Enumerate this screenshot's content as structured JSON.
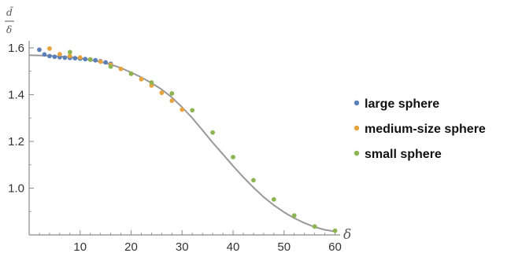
{
  "chart_data": {
    "type": "scatter",
    "x_axis": {
      "label": "δ",
      "range": [
        0,
        61
      ],
      "ticks": [
        10,
        20,
        30,
        40,
        50,
        60
      ],
      "tick_labels": [
        "10",
        "20",
        "30",
        "40",
        "50",
        "60"
      ]
    },
    "y_axis": {
      "label_numerator": "d̄",
      "label_denominator": "δ",
      "range": [
        0.8,
        1.63
      ],
      "ticks": [
        1.0,
        1.2,
        1.4,
        1.6
      ],
      "tick_labels": [
        "1.0",
        "1.2",
        "1.4",
        "1.6"
      ]
    },
    "grid": false,
    "legend_position": "right",
    "series": [
      {
        "name": "large sphere",
        "color": "#5b7fb8",
        "points": [
          [
            2,
            1.592
          ],
          [
            3,
            1.572
          ],
          [
            4,
            1.565
          ],
          [
            5,
            1.562
          ],
          [
            6,
            1.56
          ],
          [
            7,
            1.558
          ],
          [
            8,
            1.557
          ],
          [
            9,
            1.556
          ],
          [
            10,
            1.554
          ],
          [
            11,
            1.552
          ],
          [
            12,
            1.55
          ],
          [
            13,
            1.547
          ],
          [
            14,
            1.543
          ],
          [
            15,
            1.538
          ],
          [
            16,
            1.532
          ]
        ]
      },
      {
        "name": "medium-size sphere",
        "color": "#e8a33c",
        "points": [
          [
            4,
            1.597
          ],
          [
            6,
            1.573
          ],
          [
            8,
            1.565
          ],
          [
            10,
            1.559
          ],
          [
            12,
            1.551
          ],
          [
            14,
            1.541
          ],
          [
            16,
            1.528
          ],
          [
            18,
            1.51
          ],
          [
            20,
            1.489
          ],
          [
            22,
            1.466
          ],
          [
            24,
            1.439
          ],
          [
            26,
            1.408
          ],
          [
            28,
            1.374
          ],
          [
            30,
            1.336
          ]
        ]
      },
      {
        "name": "small sphere",
        "color": "#8cb450",
        "points": [
          [
            8,
            1.582
          ],
          [
            12,
            1.55
          ],
          [
            16,
            1.52
          ],
          [
            20,
            1.49
          ],
          [
            24,
            1.452
          ],
          [
            28,
            1.405
          ],
          [
            32,
            1.333
          ],
          [
            36,
            1.238
          ],
          [
            40,
            1.133
          ],
          [
            44,
            1.034
          ],
          [
            48,
            0.952
          ],
          [
            52,
            0.883
          ],
          [
            56,
            0.836
          ],
          [
            60,
            0.818
          ]
        ]
      }
    ],
    "curve": {
      "color": "#999999",
      "points": [
        [
          0,
          1.569
        ],
        [
          4,
          1.566
        ],
        [
          8,
          1.56
        ],
        [
          10,
          1.555
        ],
        [
          12,
          1.549
        ],
        [
          14,
          1.54
        ],
        [
          16,
          1.529
        ],
        [
          18,
          1.514
        ],
        [
          20,
          1.495
        ],
        [
          22,
          1.474
        ],
        [
          24,
          1.45
        ],
        [
          26,
          1.422
        ],
        [
          28,
          1.388
        ],
        [
          30,
          1.346
        ],
        [
          32,
          1.3
        ],
        [
          34,
          1.248
        ],
        [
          36,
          1.195
        ],
        [
          38,
          1.145
        ],
        [
          40,
          1.095
        ],
        [
          42,
          1.047
        ],
        [
          44,
          1.003
        ],
        [
          46,
          0.962
        ],
        [
          48,
          0.927
        ],
        [
          50,
          0.897
        ],
        [
          52,
          0.872
        ],
        [
          54,
          0.851
        ],
        [
          56,
          0.834
        ],
        [
          58,
          0.822
        ],
        [
          60,
          0.815
        ]
      ]
    }
  }
}
